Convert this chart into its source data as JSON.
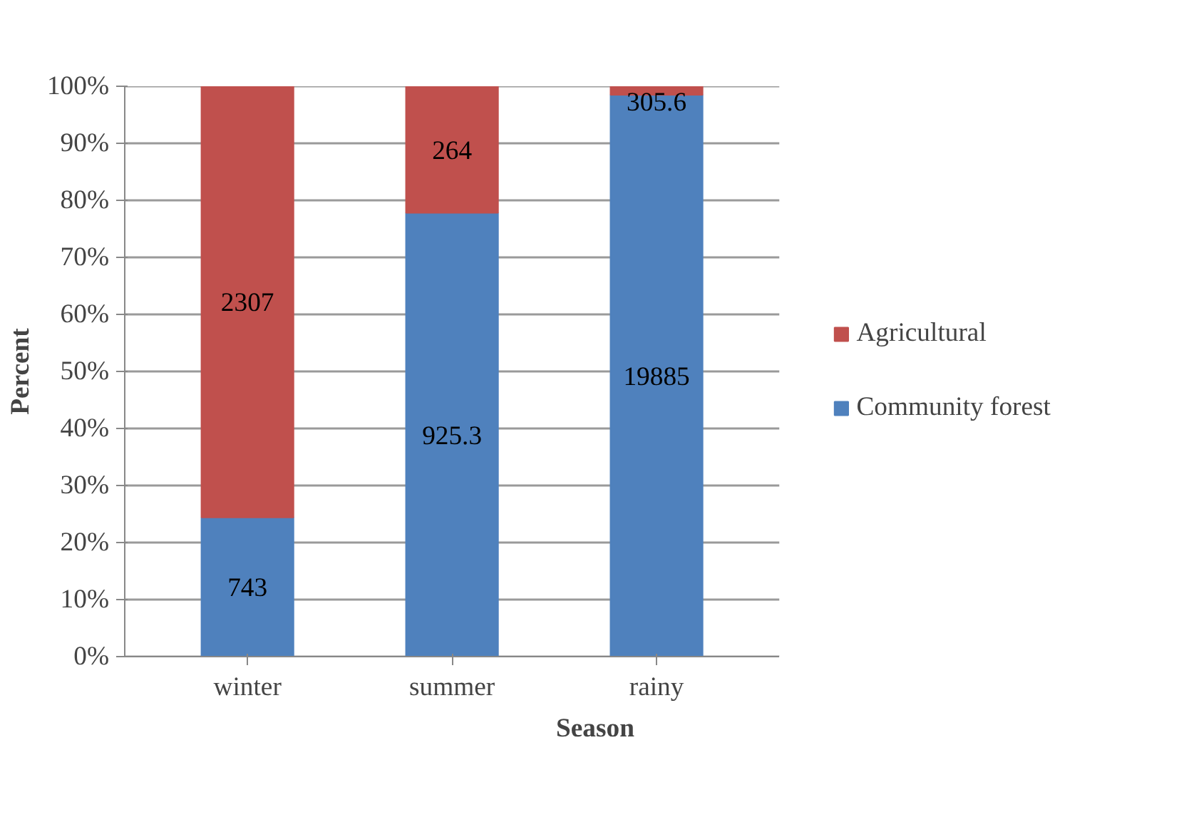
{
  "chart_data": {
    "type": "bar",
    "stacked": true,
    "xlabel": "Season",
    "ylabel": "Percent",
    "categories": [
      "winter",
      "summer",
      "rainy"
    ],
    "series": [
      {
        "name": "Community forest",
        "color": "#4f81bd",
        "values": [
          24.4,
          77.8,
          98.5
        ]
      },
      {
        "name": "Agricultural",
        "color": "#c0504d",
        "values": [
          75.6,
          22.2,
          1.5
        ]
      }
    ],
    "annotations": [
      "743",
      "925.3",
      "19885",
      "2307",
      "264",
      "305.6"
    ],
    "ylim": [
      0,
      100
    ],
    "yticks": [
      {
        "value": 0,
        "label": "0%"
      },
      {
        "value": 10,
        "label": "10%"
      },
      {
        "value": 20,
        "label": "20%"
      },
      {
        "value": 30,
        "label": "30%"
      },
      {
        "value": 40,
        "label": "40%"
      },
      {
        "value": 50,
        "label": "50%"
      },
      {
        "value": 60,
        "label": "60%"
      },
      {
        "value": 70,
        "label": "70%"
      },
      {
        "value": 80,
        "label": "80%"
      },
      {
        "value": 90,
        "label": "90%"
      },
      {
        "value": 100,
        "label": "100%"
      }
    ],
    "grid": "y",
    "legend": "right"
  }
}
